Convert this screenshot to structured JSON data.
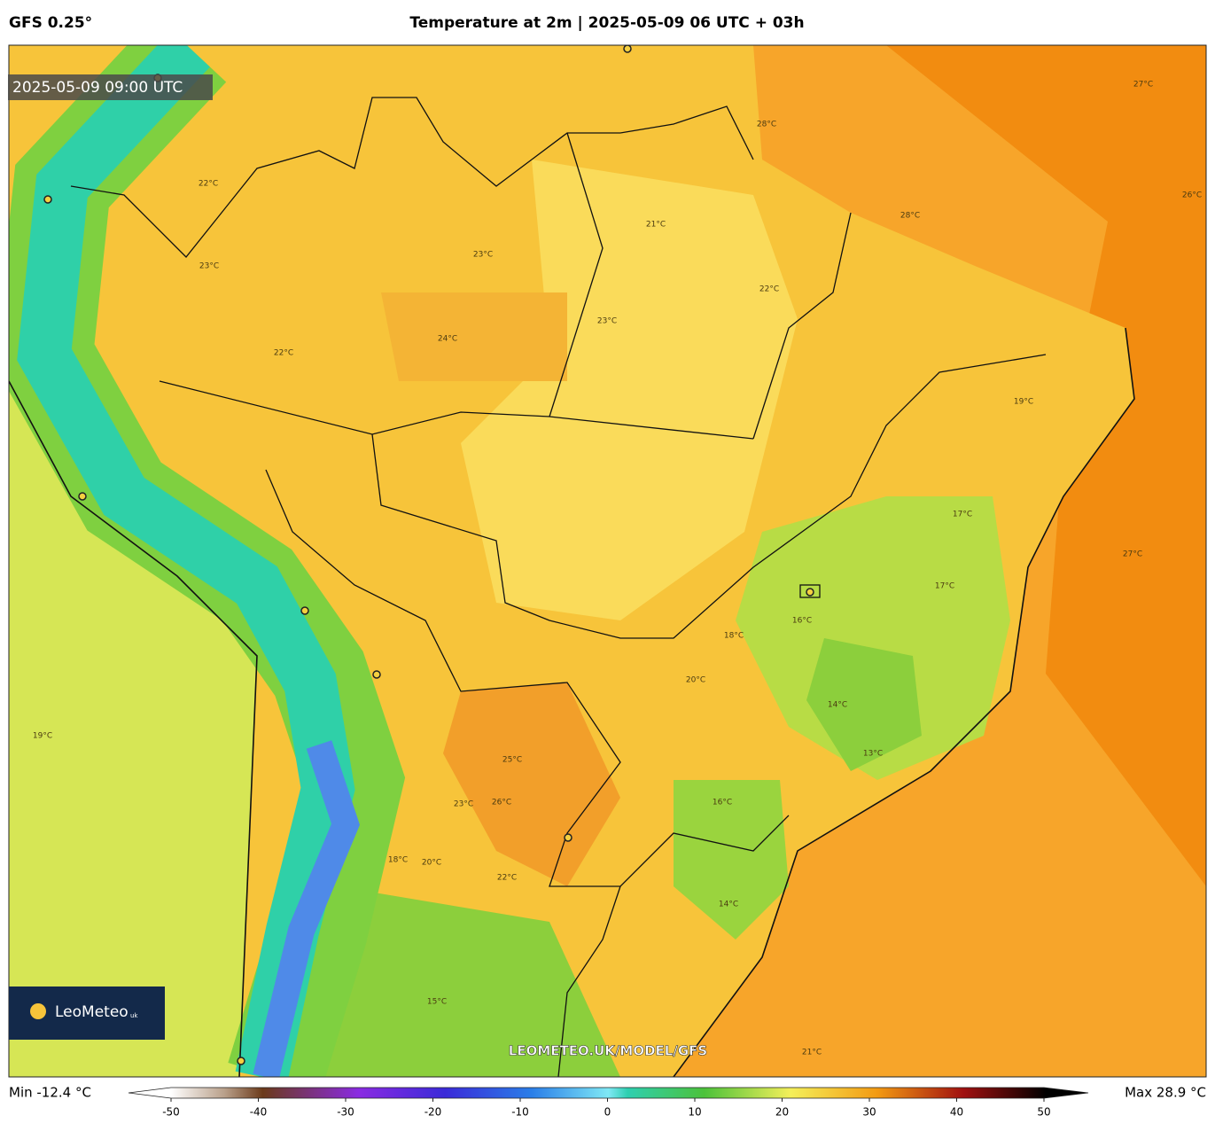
{
  "header": {
    "model": "GFS 0.25°",
    "title": "Temperature at 2m | 2025-05-09 06 UTC + 03h"
  },
  "map": {
    "timestamp": "2025-05-09 09:00 UTC",
    "watermark": "LEOMETEO.UK/MODEL/GFS",
    "contour_labels": [
      "22°C",
      "23°C",
      "24°C",
      "22°C",
      "23°C",
      "21°C",
      "22°C",
      "23°C",
      "28°C",
      "27°C",
      "26°C",
      "28°C",
      "27°C",
      "19°C",
      "17°C",
      "16°C",
      "18°C",
      "14°C",
      "13°C",
      "20°C",
      "25°C",
      "26°C",
      "23°C",
      "22°C",
      "20°C",
      "18°C",
      "19°C",
      "15°C",
      "21°C",
      "16°C",
      "14°C",
      "17°C"
    ]
  },
  "logo": {
    "name": "LeoMeteo",
    "suffix": "uk"
  },
  "colorbar": {
    "min_label": "Min -12.4 °C",
    "max_label": "Max 28.9 °C",
    "ticks": [
      -50,
      -40,
      -30,
      -20,
      -10,
      0,
      10,
      20,
      30,
      40,
      50
    ]
  }
}
